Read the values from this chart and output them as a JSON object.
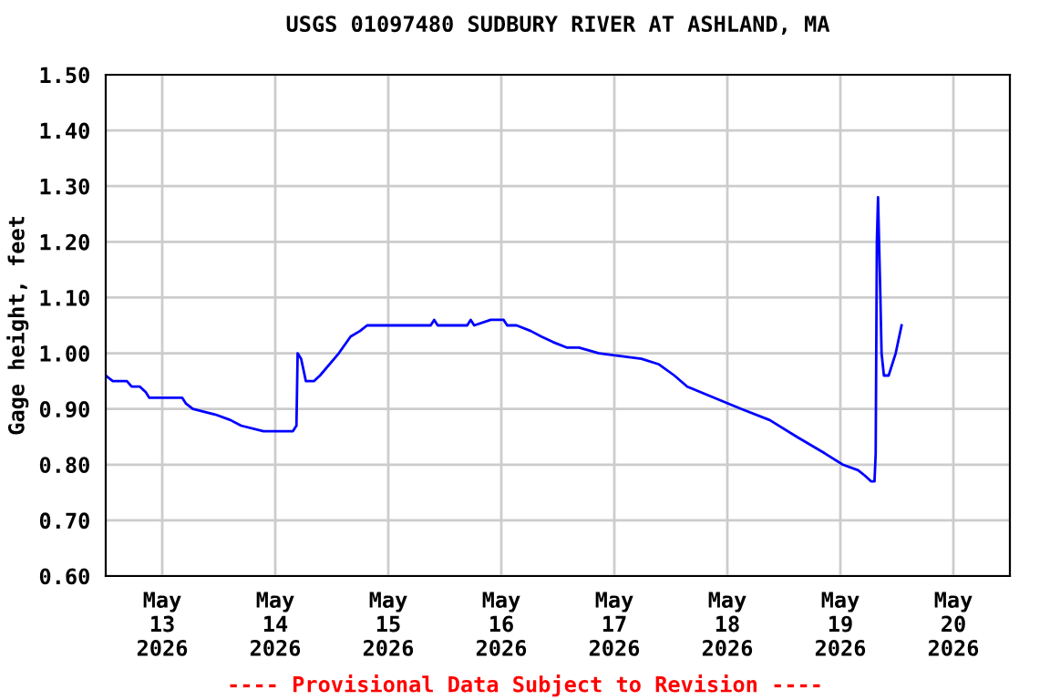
{
  "chart_data": {
    "type": "line",
    "title": "USGS 01097480 SUDBURY RIVER AT ASHLAND, MA",
    "ylabel": "Gage height, feet",
    "annotations": [
      "---- Provisional Data Subject to Revision ----"
    ],
    "x": [
      "2026-05-12T12:00",
      "2026-05-12T13:30",
      "2026-05-12T16:30",
      "2026-05-12T17:30",
      "2026-05-12T19:15",
      "2026-05-12T20:30",
      "2026-05-12T21:15",
      "2026-05-13T04:15",
      "2026-05-13T05:00",
      "2026-05-13T06:30",
      "2026-05-13T11:15",
      "2026-05-13T14:30",
      "2026-05-13T16:45",
      "2026-05-13T21:30",
      "2026-05-14T03:45",
      "2026-05-14T04:30",
      "2026-05-14T04:45",
      "2026-05-14T05:30",
      "2026-05-14T06:30",
      "2026-05-14T08:15",
      "2026-05-14T09:30",
      "2026-05-14T13:30",
      "2026-05-14T16:00",
      "2026-05-14T18:00",
      "2026-05-14T19:30",
      "2026-05-15T09:00",
      "2026-05-15T09:45",
      "2026-05-15T10:30",
      "2026-05-15T16:45",
      "2026-05-15T17:30",
      "2026-05-15T18:15",
      "2026-05-15T21:45",
      "2026-05-16T00:30",
      "2026-05-16T01:15",
      "2026-05-16T03:15",
      "2026-05-16T06:15",
      "2026-05-16T08:30",
      "2026-05-16T11:00",
      "2026-05-16T14:00",
      "2026-05-16T16:30",
      "2026-05-16T20:45",
      "2026-05-17T05:45",
      "2026-05-17T09:30",
      "2026-05-17T12:45",
      "2026-05-17T15:30",
      "2026-05-17T21:15",
      "2026-05-18T03:00",
      "2026-05-18T09:00",
      "2026-05-18T14:45",
      "2026-05-18T20:45",
      "2026-05-19T00:30",
      "2026-05-19T03:45",
      "2026-05-19T05:15",
      "2026-05-19T06:30",
      "2026-05-19T07:15",
      "2026-05-19T07:30",
      "2026-05-19T07:45",
      "2026-05-19T08:00",
      "2026-05-19T08:30",
      "2026-05-19T08:45",
      "2026-05-19T09:15",
      "2026-05-19T10:15",
      "2026-05-19T11:45",
      "2026-05-19T13:00"
    ],
    "series": [
      {
        "color": "#0000ff",
        "values": [
          0.96,
          0.95,
          0.95,
          0.94,
          0.94,
          0.93,
          0.92,
          0.92,
          0.91,
          0.9,
          0.89,
          0.88,
          0.87,
          0.86,
          0.86,
          0.87,
          1.0,
          0.99,
          0.95,
          0.95,
          0.96,
          1.0,
          1.03,
          1.04,
          1.05,
          1.05,
          1.06,
          1.05,
          1.05,
          1.06,
          1.05,
          1.06,
          1.06,
          1.05,
          1.05,
          1.04,
          1.03,
          1.02,
          1.01,
          1.01,
          1.0,
          0.99,
          0.98,
          0.96,
          0.94,
          0.92,
          0.9,
          0.88,
          0.85,
          0.82,
          0.8,
          0.79,
          0.78,
          0.77,
          0.77,
          0.82,
          1.2,
          1.28,
          1.1,
          1.0,
          0.96,
          0.96,
          1.0,
          1.05
        ]
      }
    ],
    "xlim": [
      "2026-05-12T12:00",
      "2026-05-20T12:00"
    ],
    "xticks": [
      {
        "value": "2026-05-13T00:00",
        "label": "May\n13\n2026"
      },
      {
        "value": "2026-05-14T00:00",
        "label": "May\n14\n2026"
      },
      {
        "value": "2026-05-15T00:00",
        "label": "May\n15\n2026"
      },
      {
        "value": "2026-05-16T00:00",
        "label": "May\n16\n2026"
      },
      {
        "value": "2026-05-17T00:00",
        "label": "May\n17\n2026"
      },
      {
        "value": "2026-05-18T00:00",
        "label": "May\n18\n2026"
      },
      {
        "value": "2026-05-19T00:00",
        "label": "May\n19\n2026"
      },
      {
        "value": "2026-05-20T00:00",
        "label": "May\n20\n2026"
      }
    ],
    "ylim": [
      0.6,
      1.5
    ],
    "yticks": [
      {
        "value": 0.6,
        "label": "0.60"
      },
      {
        "value": 0.7,
        "label": "0.70"
      },
      {
        "value": 0.8,
        "label": "0.80"
      },
      {
        "value": 0.9,
        "label": "0.90"
      },
      {
        "value": 1.0,
        "label": "1.00"
      },
      {
        "value": 1.1,
        "label": "1.10"
      },
      {
        "value": 1.2,
        "label": "1.20"
      },
      {
        "value": 1.3,
        "label": "1.30"
      },
      {
        "value": 1.4,
        "label": "1.40"
      },
      {
        "value": 1.5,
        "label": "1.50"
      }
    ],
    "grid": true,
    "marker": "none",
    "line_style": "solid"
  }
}
